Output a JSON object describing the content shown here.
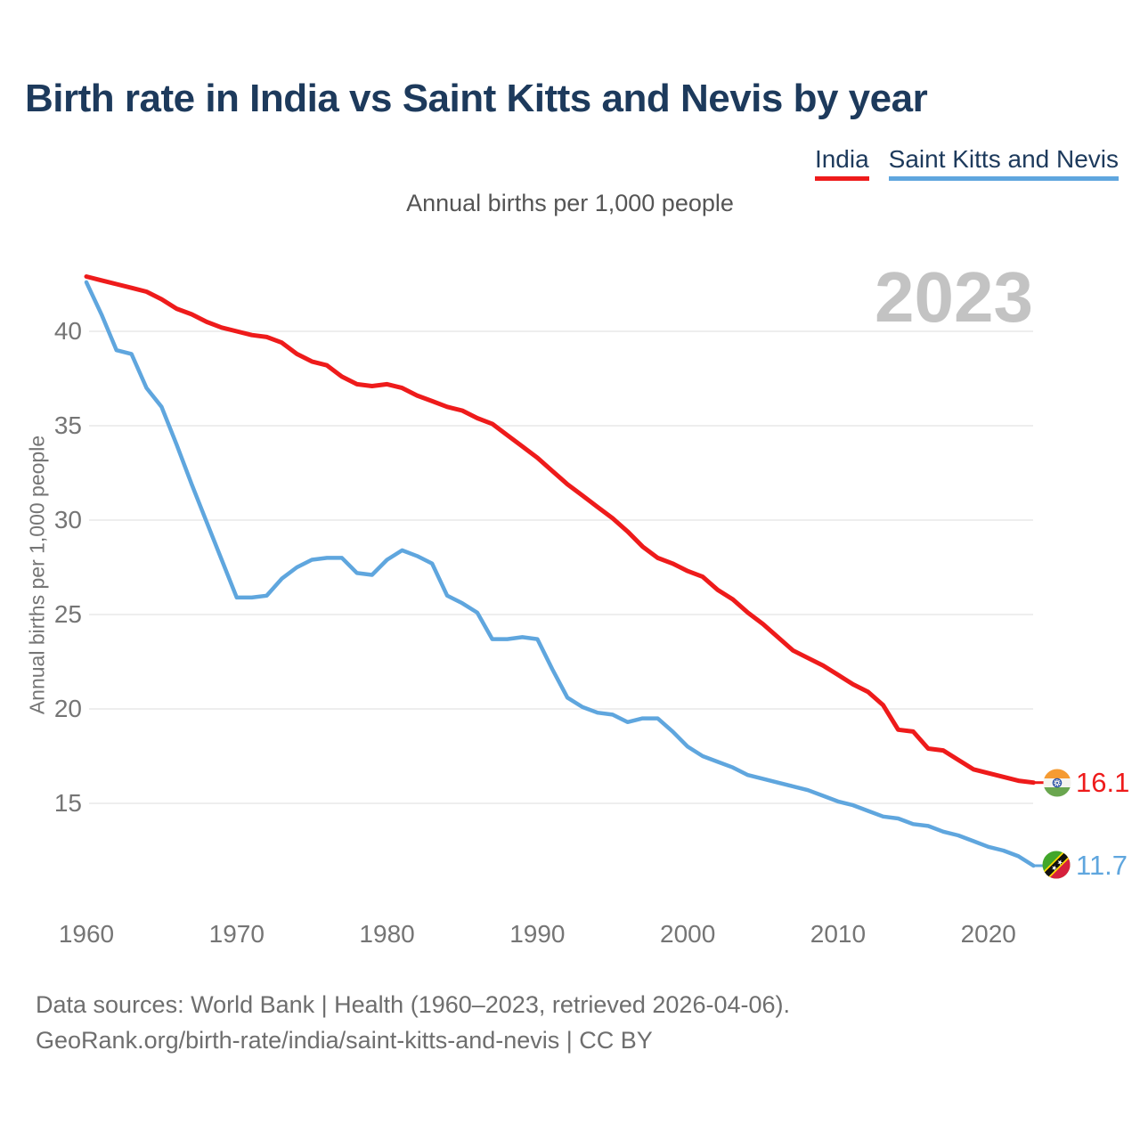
{
  "header": {
    "title": "Birth rate in India vs Saint Kitts and Nevis by year",
    "subtitle": "Annual births per 1,000 people"
  },
  "watermark": "2023",
  "chart_data": {
    "type": "line",
    "title": "Birth rate in India vs Saint Kitts and Nevis by year",
    "subtitle": "Annual births per 1,000 people",
    "ylabel": "Annual births per 1,000 people",
    "xlabel": "",
    "grid": "horizontal",
    "legend_position": "top-right",
    "xlim": [
      1960,
      2023
    ],
    "ylim": [
      10,
      44
    ],
    "xticks": [
      1960,
      1970,
      1980,
      1990,
      2000,
      2010,
      2020
    ],
    "yticks": [
      40,
      35,
      30,
      25,
      20,
      15
    ],
    "x_years": [
      1960,
      1961,
      1962,
      1963,
      1964,
      1965,
      1966,
      1967,
      1968,
      1969,
      1970,
      1971,
      1972,
      1973,
      1974,
      1975,
      1976,
      1977,
      1978,
      1979,
      1980,
      1981,
      1982,
      1983,
      1984,
      1985,
      1986,
      1987,
      1988,
      1989,
      1990,
      1991,
      1992,
      1993,
      1994,
      1995,
      1996,
      1997,
      1998,
      1999,
      2000,
      2001,
      2002,
      2003,
      2004,
      2005,
      2006,
      2007,
      2008,
      2009,
      2010,
      2011,
      2012,
      2013,
      2014,
      2015,
      2016,
      2017,
      2018,
      2019,
      2020,
      2021,
      2022,
      2023
    ],
    "series": [
      {
        "name": "India",
        "color": "#ee1b1b",
        "end_label": "16.1",
        "end_flag": "india-flag-icon",
        "values": [
          42.9,
          42.7,
          42.5,
          42.3,
          42.1,
          41.7,
          41.2,
          40.9,
          40.5,
          40.2,
          40.0,
          39.8,
          39.7,
          39.4,
          38.8,
          38.4,
          38.2,
          37.6,
          37.2,
          37.1,
          37.2,
          37.0,
          36.6,
          36.3,
          36.0,
          35.8,
          35.4,
          35.1,
          34.5,
          33.9,
          33.3,
          32.6,
          31.9,
          31.3,
          30.7,
          30.1,
          29.4,
          28.6,
          28.0,
          27.7,
          27.3,
          27.0,
          26.3,
          25.8,
          25.1,
          24.5,
          23.8,
          23.1,
          22.7,
          22.3,
          21.8,
          21.3,
          20.9,
          20.2,
          18.9,
          18.8,
          17.9,
          17.8,
          17.3,
          16.8,
          16.6,
          16.4,
          16.2,
          16.1
        ]
      },
      {
        "name": "Saint Kitts and Nevis",
        "color": "#5fa6de",
        "end_label": "11.7",
        "end_flag": "saint-kitts-and-nevis-flag-icon",
        "values": [
          42.6,
          40.9,
          39.0,
          38.8,
          37.0,
          36.0,
          34.0,
          31.9,
          29.9,
          27.9,
          25.9,
          25.9,
          26.0,
          26.9,
          27.5,
          27.9,
          28.0,
          28.0,
          27.2,
          27.1,
          27.9,
          28.4,
          28.1,
          27.7,
          26.0,
          25.6,
          25.1,
          23.7,
          23.7,
          23.8,
          23.7,
          22.1,
          20.6,
          20.1,
          19.8,
          19.7,
          19.3,
          19.5,
          19.5,
          18.8,
          18.0,
          17.5,
          17.2,
          16.9,
          16.5,
          16.3,
          16.1,
          15.9,
          15.7,
          15.4,
          15.1,
          14.9,
          14.6,
          14.3,
          14.2,
          13.9,
          13.8,
          13.5,
          13.3,
          13.0,
          12.7,
          12.5,
          12.2,
          11.7
        ]
      }
    ]
  },
  "colors": {
    "india_line": "#ee1b1b",
    "saint_kitts_line": "#5fa6de",
    "title_navy": "#1d3a5c",
    "tick_gray": "#757575",
    "watermark_gray": "#c3c3c3",
    "gridline": "#e9e9e9"
  },
  "footer": {
    "line1": "Data sources: World Bank | Health (1960–2023, retrieved 2026-04-06).",
    "line2": "GeoRank.org/birth-rate/india/saint-kitts-and-nevis | CC BY"
  }
}
